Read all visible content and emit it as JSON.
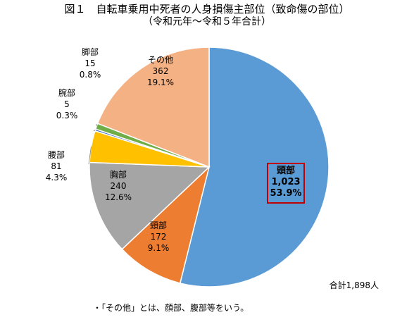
{
  "title": "図１　自転車乗用中死者の人身損傷主部位（致命傷の部位）",
  "subtitle": "（令和元年～令和５年合計）",
  "total_label": "合計1,898人",
  "note": "・「その他」とは、顔部、腹部等をいう。",
  "chart_data": {
    "type": "pie",
    "total": 1898,
    "slices": [
      {
        "name": "頭部",
        "value": 1023,
        "value_label": "1,023",
        "pct": "53.9%",
        "color": "#5B9BD5",
        "highlight": true
      },
      {
        "name": "頸部",
        "value": 172,
        "value_label": "172",
        "pct": "9.1%",
        "color": "#ED7D31"
      },
      {
        "name": "胸部",
        "value": 240,
        "value_label": "240",
        "pct": "12.6%",
        "color": "#A5A5A5"
      },
      {
        "name": "腰部",
        "value": 81,
        "value_label": "81",
        "pct": "4.3%",
        "color": "#FFC000"
      },
      {
        "name": "腕部",
        "value": 5,
        "value_label": "5",
        "pct": "0.3%",
        "color": "#4472C4"
      },
      {
        "name": "脚部",
        "value": 15,
        "value_label": "15",
        "pct": "0.8%",
        "color": "#70AD47"
      },
      {
        "name": "その他",
        "value": 362,
        "value_label": "362",
        "pct": "19.1%",
        "color": "#F4B183"
      }
    ],
    "highlight_color": "#C00000"
  }
}
